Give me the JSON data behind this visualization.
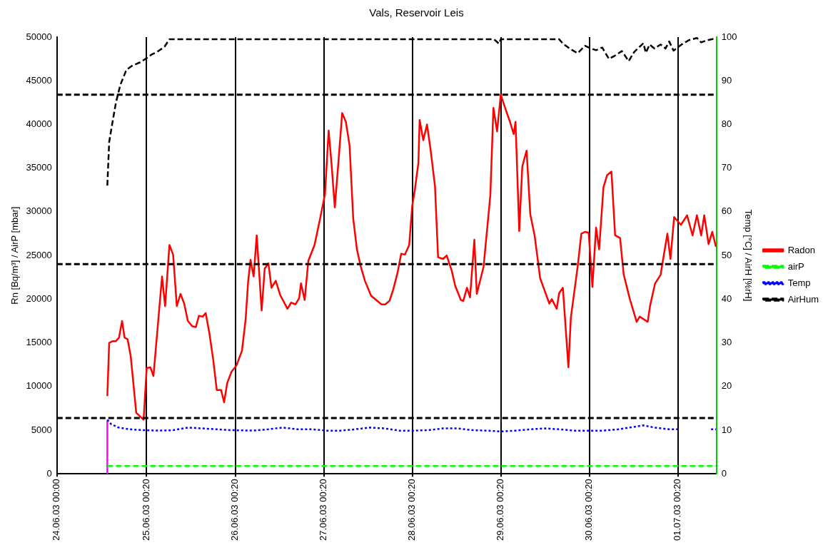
{
  "chart_data": {
    "type": "line",
    "title": "Vals, Reservoir Leis",
    "ylabel": "Rn [Bq/m³] / AirP [mbar]",
    "y2label": "Temp [°C] / AirH [%rH]",
    "xlim": [
      "--06-24T00:00",
      "--07-01T10:50"
    ],
    "xticks": [
      {
        "value": "--06-24T00:00",
        "label": "24.06.03 00:00"
      },
      {
        "value": "--06-25T00:20",
        "label": "25.06.03 00:20"
      },
      {
        "value": "--06-26T00:20",
        "label": "26.06.03 00:20"
      },
      {
        "value": "--06-27T00:20",
        "label": "27.06.03 00:20"
      },
      {
        "value": "--06-28T00:20",
        "label": "28.06.03 00:20"
      },
      {
        "value": "--06-29T00:20",
        "label": "29.06.03 00:20"
      },
      {
        "value": "--06-30T00:20",
        "label": "30.06.03 00:20"
      },
      {
        "value": "--07-01T00:20",
        "label": "01.07.03 00:20"
      }
    ],
    "ylim": [
      0,
      50000
    ],
    "yticks": [
      0,
      5000,
      10000,
      15000,
      20000,
      25000,
      30000,
      35000,
      40000,
      45000,
      50000
    ],
    "y2lim": [
      0,
      100
    ],
    "y2ticks": [
      0,
      10,
      20,
      30,
      40,
      50,
      60,
      70,
      80,
      90,
      100
    ],
    "grid": "x",
    "legend": "right",
    "ref_lines": [
      {
        "axis": "y",
        "value": 43400,
        "color": "#000000",
        "line_style": "dashed"
      },
      {
        "axis": "y",
        "value": 24000,
        "color": "#000000",
        "line_style": "dashed"
      },
      {
        "axis": "y",
        "value": 6400,
        "color": "#000000",
        "line_style": "dashed"
      }
    ],
    "series": [
      {
        "name": "Radon",
        "color": "#ff0000",
        "line_style": "solid",
        "x": [
          "--06-24T13:40",
          "--06-24T14:10",
          "--06-24T15:10",
          "--06-24T16:00",
          "--06-24T16:50",
          "--06-24T17:40",
          "--06-24T18:20",
          "--06-24T19:10",
          "--06-24T20:00",
          "--06-24T21:30",
          "--06-24T23:30",
          "--06-25T00:20",
          "--06-25T01:20",
          "--06-25T02:10",
          "--06-25T03:30",
          "--06-25T04:30",
          "--06-25T05:20",
          "--06-25T06:30",
          "--06-25T07:30",
          "--06-25T08:30",
          "--06-25T09:30",
          "--06-25T10:30",
          "--06-25T11:30",
          "--06-25T12:40",
          "--06-25T13:40",
          "--06-25T14:30",
          "--06-25T15:30",
          "--06-25T16:20",
          "--06-25T17:20",
          "--06-25T18:20",
          "--06-25T19:20",
          "--06-25T20:30",
          "--06-25T21:20",
          "--06-25T22:10",
          "--06-25T23:20",
          "--06-26T00:40",
          "--06-26T02:10",
          "--06-26T03:10",
          "--06-26T03:50",
          "--06-26T04:30",
          "--06-26T05:20",
          "--06-26T06:10",
          "--06-26T07:30",
          "--06-26T08:20",
          "--06-26T09:20",
          "--06-26T10:10",
          "--06-26T11:20",
          "--06-26T12:30",
          "--06-26T14:30",
          "--06-26T15:30",
          "--06-26T16:40",
          "--06-26T17:40",
          "--06-26T18:10",
          "--06-26T19:10",
          "--06-26T20:10",
          "--06-26T21:50",
          "--06-26T23:20",
          "--06-27T00:40",
          "--06-27T01:40",
          "--06-27T02:30",
          "--06-27T03:20",
          "--06-27T04:20",
          "--06-27T05:20",
          "--06-27T06:20",
          "--06-27T07:20",
          "--06-27T08:20",
          "--06-27T09:20",
          "--06-27T10:20",
          "--06-27T11:30",
          "--06-27T13:10",
          "--06-27T14:50",
          "--06-27T16:00",
          "--06-27T17:00",
          "--06-27T18:10",
          "--06-27T19:10",
          "--06-27T20:20",
          "--06-27T21:20",
          "--06-27T22:20",
          "--06-27T23:30",
          "--06-28T00:20",
          "--06-28T01:00",
          "--06-28T02:00",
          "--06-28T02:20",
          "--06-28T03:20",
          "--06-28T04:20",
          "--06-28T05:20",
          "--06-28T06:30",
          "--06-28T07:20",
          "--06-28T08:40",
          "--06-28T09:40",
          "--06-28T11:00",
          "--06-28T12:00",
          "--06-28T13:30",
          "--06-28T14:10",
          "--06-28T15:10",
          "--06-28T16:00",
          "--06-28T17:10",
          "--06-28T17:50",
          "--06-28T19:40",
          "--06-28T21:30",
          "--06-28T22:20",
          "--06-28T23:20",
          "--06-29T00:20",
          "--06-29T01:50",
          "--06-29T02:50",
          "--06-29T03:50",
          "--06-29T04:20",
          "--06-29T05:20",
          "--06-29T06:10",
          "--06-29T07:20",
          "--06-29T08:20",
          "--06-29T09:30",
          "--06-29T11:00",
          "--06-29T13:30",
          "--06-29T14:10",
          "--06-29T15:30",
          "--06-29T16:10",
          "--06-29T17:10",
          "--06-29T18:40",
          "--06-29T19:20",
          "--06-29T21:10",
          "--06-29T22:10",
          "--06-29T23:10",
          "--06-30T00:10",
          "--06-30T01:10",
          "--06-30T02:10",
          "--06-30T03:00",
          "--06-30T04:10",
          "--06-30T05:10",
          "--06-30T06:20",
          "--06-30T07:20",
          "--06-30T08:40",
          "--06-30T09:40",
          "--06-30T11:20",
          "--06-30T13:10",
          "--06-30T14:00",
          "--06-30T16:10",
          "--06-30T16:50",
          "--06-30T18:10",
          "--06-30T19:40",
          "--06-30T21:30",
          "--06-30T22:20",
          "--06-30T23:20",
          "--07-01T01:10",
          "--07-01T02:50",
          "--07-01T04:20",
          "--07-01T05:30",
          "--07-01T06:40",
          "--07-01T07:30",
          "--07-01T08:40",
          "--07-01T09:40",
          "--07-01T10:40"
        ],
        "values": [
          8900,
          15000,
          15200,
          15200,
          15600,
          17500,
          15600,
          15400,
          13500,
          7000,
          6200,
          12100,
          12200,
          11200,
          17700,
          22600,
          19200,
          26200,
          25100,
          19200,
          20600,
          19500,
          17500,
          16900,
          16800,
          18100,
          18000,
          18400,
          16100,
          13200,
          9600,
          9600,
          8200,
          10400,
          11700,
          12400,
          14100,
          17700,
          22000,
          24500,
          22600,
          27300,
          18700,
          23500,
          24100,
          21300,
          22100,
          20500,
          18900,
          19600,
          19400,
          20100,
          21800,
          19900,
          24400,
          26200,
          29200,
          32000,
          39300,
          35200,
          30500,
          35800,
          41300,
          40300,
          37600,
          29200,
          25700,
          23800,
          22100,
          20400,
          19800,
          19400,
          19400,
          19800,
          21100,
          23000,
          25200,
          25100,
          26200,
          30700,
          32400,
          35600,
          40500,
          38200,
          40000,
          37000,
          32900,
          24800,
          24600,
          25000,
          23300,
          21500,
          19900,
          19800,
          21300,
          20200,
          26800,
          20600,
          23700,
          31900,
          41900,
          39200,
          43400,
          41500,
          40300,
          38900,
          40300,
          27800,
          35200,
          37000,
          29700,
          27300,
          22400,
          19500,
          20000,
          18900,
          20700,
          21300,
          12200,
          17900,
          23700,
          27500,
          27700,
          27600,
          21400,
          28200,
          25700,
          32800,
          34200,
          34600,
          27300,
          27000,
          22800,
          20000,
          17400,
          18000,
          17400,
          19300,
          21800,
          22800,
          27500,
          24600,
          29400,
          28500,
          29600,
          27300,
          29600,
          27300,
          29600,
          26300,
          27700,
          26000
        ]
      },
      {
        "name": "airP",
        "color": "#00ff00",
        "line_style": "dashed",
        "x": [
          "--06-24T13:40",
          "--07-01T10:40"
        ],
        "values": [
          900,
          900
        ]
      },
      {
        "name": "Temp",
        "color": "#0000ff",
        "line_style": "dotted",
        "axis": "y2",
        "x": [
          "--06-24T13:40",
          "--06-24T14:40",
          "--06-24T16:40",
          "--06-24T19:40",
          "--06-24T23:30",
          "--06-25T03:30",
          "--06-25T07:30",
          "--06-25T11:30",
          "--06-25T15:30",
          "--06-25T19:20",
          "--06-25T23:20",
          "--06-26T05:20",
          "--06-26T09:20",
          "--06-26T13:10",
          "--06-26T17:10",
          "--06-26T21:10",
          "--06-27T01:00",
          "--06-27T04:50",
          "--06-27T08:50",
          "--06-27T12:50",
          "--06-27T16:50",
          "--06-27T20:50",
          "--06-28T00:50",
          "--06-28T04:40",
          "--06-28T08:40",
          "--06-28T12:40",
          "--06-28T16:40",
          "--06-28T20:30",
          "--06-29T00:20",
          "--06-29T04:20",
          "--06-29T08:20",
          "--06-29T12:20",
          "--06-29T16:10",
          "--06-29T20:10",
          "--06-30T00:10",
          "--06-30T04:10",
          "--06-30T08:10",
          "--06-30T12:00",
          "--06-30T15:00",
          "--06-30T18:00",
          "--06-30T22:00",
          "--07-01T00:20",
          "--07-01T05:00",
          "--07-01T09:20",
          "--07-01T10:40"
        ],
        "values": [
          12.4,
          11.4,
          10.6,
          10.2,
          10,
          9.9,
          10,
          10.6,
          10.4,
          10.2,
          10,
          9.9,
          10.2,
          10.6,
          10.2,
          10.2,
          9.9,
          9.9,
          10.2,
          10.6,
          10.4,
          9.9,
          9.9,
          10,
          10.4,
          10.4,
          10,
          9.9,
          9.7,
          9.9,
          10.2,
          10.4,
          10.2,
          9.9,
          9.9,
          9.9,
          10.2,
          10.7,
          11.1,
          10.6,
          10.2,
          10.2,
          null,
          10.2,
          10.2
        ]
      },
      {
        "name": "AirHum",
        "color": "#000000",
        "line_style": "dashed",
        "axis": "y2",
        "x": [
          "--06-24T13:40",
          "--06-24T14:10",
          "--06-24T15:10",
          "--06-24T16:00",
          "--06-24T17:10",
          "--06-24T18:50",
          "--06-24T20:30",
          "--06-24T22:30",
          "--06-25T00:00",
          "--06-25T01:40",
          "--06-25T03:10",
          "--06-25T05:10",
          "--06-25T06:30",
          "--06-28T22:30",
          "--06-28T23:50",
          "--06-29T00:20",
          "--06-29T16:10",
          "--06-29T17:10",
          "--06-29T19:10",
          "--06-29T21:10",
          "--06-29T23:10",
          "--06-30T00:10",
          "--06-30T02:10",
          "--06-30T03:50",
          "--06-30T05:40",
          "--06-30T07:10",
          "--06-30T09:10",
          "--06-30T11:00",
          "--06-30T12:30",
          "--06-30T15:00",
          "--06-30T15:40",
          "--06-30T16:40",
          "--06-30T18:00",
          "--06-30T19:40",
          "--06-30T21:00",
          "--06-30T22:00",
          "--06-30T23:10",
          "--07-01T01:20",
          "--07-01T03:20",
          "--07-01T05:30",
          "--07-01T06:40",
          "--07-01T08:20",
          "--07-01T10:40"
        ],
        "values": [
          66,
          76,
          81,
          85,
          89,
          92.5,
          93.5,
          94.2,
          95,
          96,
          96.6,
          97.8,
          99.5,
          99.5,
          98.5,
          99.5,
          99.5,
          98.5,
          97.3,
          96.3,
          98,
          97.6,
          97,
          97.6,
          95,
          95.7,
          96.8,
          94.5,
          96.6,
          98.6,
          96.4,
          98.3,
          97.4,
          98.3,
          97.4,
          99,
          96.9,
          98.3,
          99.3,
          99.8,
          98.8,
          99.3,
          99.7
        ]
      },
      {
        "color": "#ff00ff",
        "line_style": "solid",
        "x": [
          "--06-24T13:40",
          "--06-24T13:40"
        ],
        "values": [
          0,
          6100
        ]
      }
    ]
  }
}
